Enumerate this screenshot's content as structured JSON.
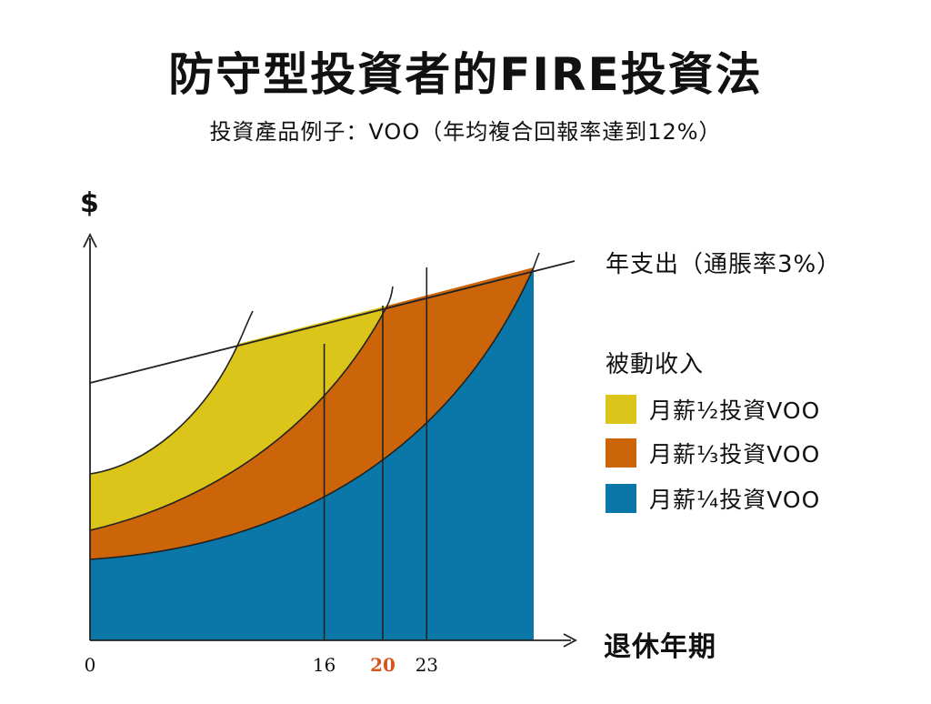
{
  "title": "防守型投資者的FIRE投資法",
  "subtitle": "投資產品例子：VOO（年均複合回報率達到12%）",
  "chart_data": {
    "type": "area",
    "ylabel": "$",
    "xlabel": "退休年期",
    "x_ticks": [
      {
        "label": "0",
        "value": 0,
        "highlight": false
      },
      {
        "label": "16",
        "value": 16,
        "highlight": true,
        "color": "#111111"
      },
      {
        "label": "20",
        "value": 20,
        "highlight": true,
        "color": "#d9531e"
      },
      {
        "label": "23",
        "value": 23,
        "highlight": false
      }
    ],
    "expense_line_label": "年支出（通脹率3%）",
    "legend_title": "被動收入",
    "series": [
      {
        "name": "月薪½投資VOO",
        "color": "#dcc51a",
        "retire_year": 16
      },
      {
        "name": "月薪⅓投資VOO",
        "color": "#cc6409",
        "retire_year": 20
      },
      {
        "name": "月薪¼投資VOO",
        "color": "#0a77a8",
        "retire_year": 23
      }
    ],
    "grid": false
  }
}
